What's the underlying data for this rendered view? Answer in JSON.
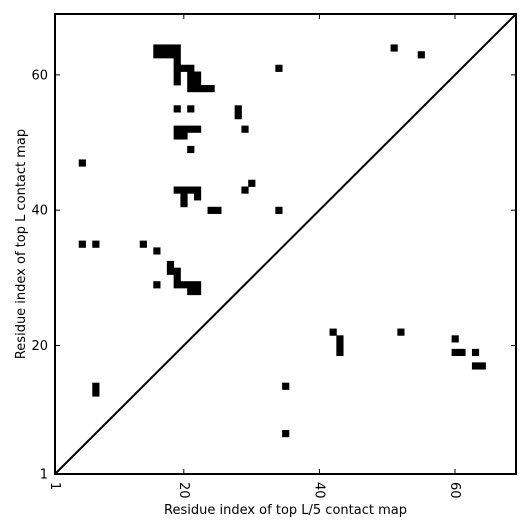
{
  "chart_data": {
    "type": "heatmap",
    "xlabel": "Residue index of top L/5 contact map",
    "ylabel": "Residue index of top L contact map",
    "xlim": [
      1,
      69
    ],
    "ylim": [
      1,
      69
    ],
    "xticks": [
      1,
      20,
      40,
      60
    ],
    "yticks": [
      1,
      20,
      40,
      60
    ],
    "xtick_rotation": -90,
    "diagonal": true,
    "grid": false,
    "colors": {
      "cell": "#000000",
      "background": "#ffffff",
      "axes": "#000000"
    },
    "cells": [
      [
        16,
        64
      ],
      [
        17,
        64
      ],
      [
        18,
        64
      ],
      [
        19,
        64
      ],
      [
        16,
        63
      ],
      [
        17,
        63
      ],
      [
        18,
        63
      ],
      [
        19,
        63
      ],
      [
        19,
        62
      ],
      [
        19,
        61
      ],
      [
        20,
        61
      ],
      [
        21,
        61
      ],
      [
        19,
        60
      ],
      [
        21,
        60
      ],
      [
        22,
        60
      ],
      [
        19,
        59
      ],
      [
        21,
        59
      ],
      [
        22,
        59
      ],
      [
        21,
        58
      ],
      [
        22,
        58
      ],
      [
        23,
        58
      ],
      [
        24,
        58
      ],
      [
        19,
        55
      ],
      [
        21,
        55
      ],
      [
        28,
        55
      ],
      [
        28,
        54
      ],
      [
        19,
        52
      ],
      [
        20,
        52
      ],
      [
        21,
        52
      ],
      [
        22,
        52
      ],
      [
        19,
        51
      ],
      [
        20,
        51
      ],
      [
        29,
        52
      ],
      [
        21,
        49
      ],
      [
        5,
        47
      ],
      [
        19,
        43
      ],
      [
        20,
        43
      ],
      [
        21,
        43
      ],
      [
        22,
        43
      ],
      [
        20,
        42
      ],
      [
        22,
        42
      ],
      [
        20,
        41
      ],
      [
        24,
        40
      ],
      [
        25,
        40
      ],
      [
        29,
        43
      ],
      [
        30,
        44
      ],
      [
        34,
        61
      ],
      [
        34,
        40
      ],
      [
        51,
        64
      ],
      [
        55,
        63
      ],
      [
        5,
        35
      ],
      [
        7,
        35
      ],
      [
        14,
        35
      ],
      [
        16,
        34
      ],
      [
        18,
        32
      ],
      [
        18,
        31
      ],
      [
        19,
        31
      ],
      [
        19,
        30
      ],
      [
        16,
        29
      ],
      [
        19,
        29
      ],
      [
        20,
        29
      ],
      [
        21,
        29
      ],
      [
        22,
        29
      ],
      [
        21,
        28
      ],
      [
        22,
        28
      ],
      [
        7,
        14
      ],
      [
        7,
        13
      ],
      [
        35,
        14
      ],
      [
        35,
        7
      ],
      [
        42,
        22
      ],
      [
        52,
        22
      ],
      [
        43,
        21
      ],
      [
        43,
        20
      ],
      [
        43,
        19
      ],
      [
        60,
        21
      ],
      [
        60,
        19
      ],
      [
        61,
        19
      ],
      [
        63,
        19
      ],
      [
        63,
        17
      ],
      [
        64,
        17
      ]
    ]
  }
}
